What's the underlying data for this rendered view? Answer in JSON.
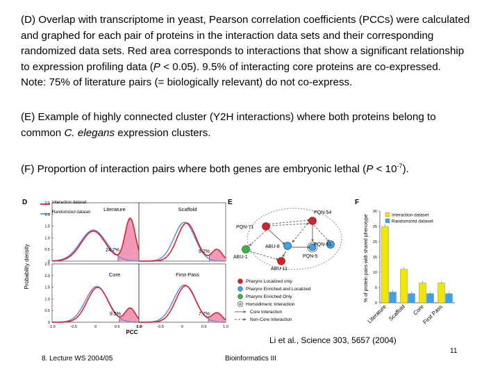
{
  "paragraphs": {
    "d": {
      "line1": "(D) Overlap with transcriptome in yeast, Pearson correlation coefficients (PCCs) were calculated",
      "line2": "and graphed for each pair of proteins in the interaction data sets and their corresponding",
      "line3": "randomized data sets. Red area corresponds to interactions that show a significant relationship",
      "line4a": "to expression profiling data (",
      "line4p": "P",
      "line4b": " < 0.05). 9.5% of interacting core proteins are co-expressed.",
      "line5": "Note: 75% of literature pairs (= biologically relevant) do not co-express."
    },
    "e": {
      "line1": "(E) Example of highly connected cluster (Y2H interactions) where both proteins belong to",
      "line2a": "common ",
      "line2i": "C. elegans",
      "line2b": " expression clusters."
    },
    "f": {
      "a": "(F) Proportion of interaction pairs where both genes are embryonic lethal (",
      "p": "P",
      "b": " < 10",
      "sup": "-7",
      "c": ")."
    }
  },
  "panel_d": {
    "letter": "D",
    "ylabel": "Probability density",
    "xlabel": "PCC",
    "legend": [
      "Interaction dataset",
      "Randomized dataset"
    ],
    "subplots": [
      {
        "name": "Literature",
        "percent": "24.7%"
      },
      {
        "name": "Scaffold",
        "percent": "9.2%"
      },
      {
        "name": "Core",
        "percent": "9.5%"
      },
      {
        "name": "First-Pass",
        "percent": "7.7%"
      }
    ],
    "yticks_top": [
      "2.5",
      "2.0",
      "1.5",
      "1.0",
      "0.5",
      "0"
    ],
    "yticks_bottom": [
      "2.5",
      "2.0",
      "1.5",
      "1.0",
      "0.5",
      "0"
    ],
    "xticks_left": [
      "-1.0",
      "-0.5",
      "0",
      "0.5",
      "1.0"
    ],
    "xticks_right": [
      "-1.0",
      "-0.5",
      "0",
      "0.5",
      "1.0"
    ]
  },
  "panel_e": {
    "letter": "E",
    "nodes": [
      "PQN-54",
      "PQN-71",
      "ABU-8",
      "PQN-5",
      "PQN-51",
      "ABU-1",
      "ABU-11"
    ],
    "legend": [
      "Pharynx Localized only",
      "Pharynx Enriched and Localized",
      "Pharynx Enriched Only",
      "Homodimeric Interaction",
      "Core Interaction",
      "Non-Core Interaction"
    ]
  },
  "chart_data": {
    "type": "bar",
    "title": "F",
    "ylabel": "% of protein pairs with shared phenotype",
    "xlabel": "",
    "categories": [
      "Literature",
      "Scaffold",
      "Core",
      "First Pass"
    ],
    "series": [
      {
        "name": "Interaction dataset",
        "values": [
          25,
          11,
          6.5,
          6.5
        ],
        "color": "#f2e500"
      },
      {
        "name": "Randomized dataset",
        "values": [
          3.5,
          3,
          3,
          3
        ],
        "color": "#39a3ee"
      }
    ],
    "ylim": [
      0,
      30
    ],
    "yticks": [
      "0",
      "5",
      "10",
      "15",
      "20",
      "25",
      "30"
    ]
  },
  "citation": "Li et al., Science  303, 5657 (2004)",
  "footer": {
    "lecture": "8. Lecture WS 2004/05",
    "course": "Bioinformatics III",
    "page": "11"
  },
  "colors": {
    "interaction": "#d9202b",
    "randomized": "#6e8ed6",
    "fill": "#f09ab8"
  }
}
